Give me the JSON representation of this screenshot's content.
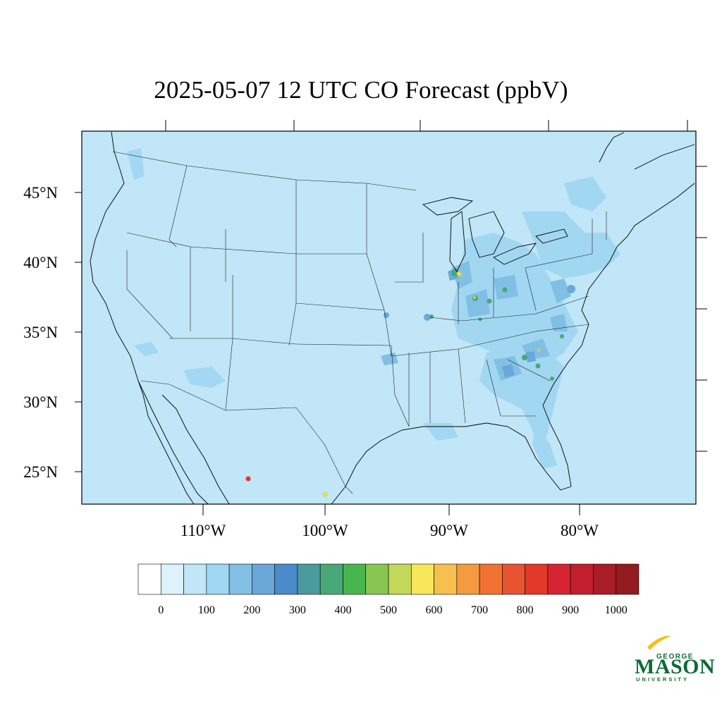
{
  "title": "2025-05-07 12 UTC CO Forecast (ppbV)",
  "map": {
    "ocean_color": "#c0e6f7",
    "background_level_color": "#c0e6f7",
    "lat_labels": [
      "45°N",
      "40°N",
      "35°N",
      "30°N",
      "25°N"
    ],
    "lon_labels": [
      "110°W",
      "100°W",
      "90°W",
      "80°W"
    ]
  },
  "colorbar": {
    "colors": [
      "#ffffff",
      "#ddf2fb",
      "#c0e6f7",
      "#9fd6f2",
      "#82bfe5",
      "#6aa8d9",
      "#4b8bc9",
      "#4a9a9e",
      "#48a877",
      "#48b64f",
      "#88c652",
      "#c3d758",
      "#f7e65a",
      "#f7bf4d",
      "#f49a40",
      "#f07131",
      "#e85330",
      "#e2392b",
      "#d62432",
      "#c11f2e",
      "#a81d27",
      "#911b1f"
    ],
    "labels": [
      "0",
      "100",
      "200",
      "300",
      "400",
      "500",
      "600",
      "700",
      "800",
      "900",
      "1000"
    ]
  },
  "logo": {
    "line1": "GEORGE",
    "line2": "MASON",
    "line3": "UNIVERSITY"
  }
}
